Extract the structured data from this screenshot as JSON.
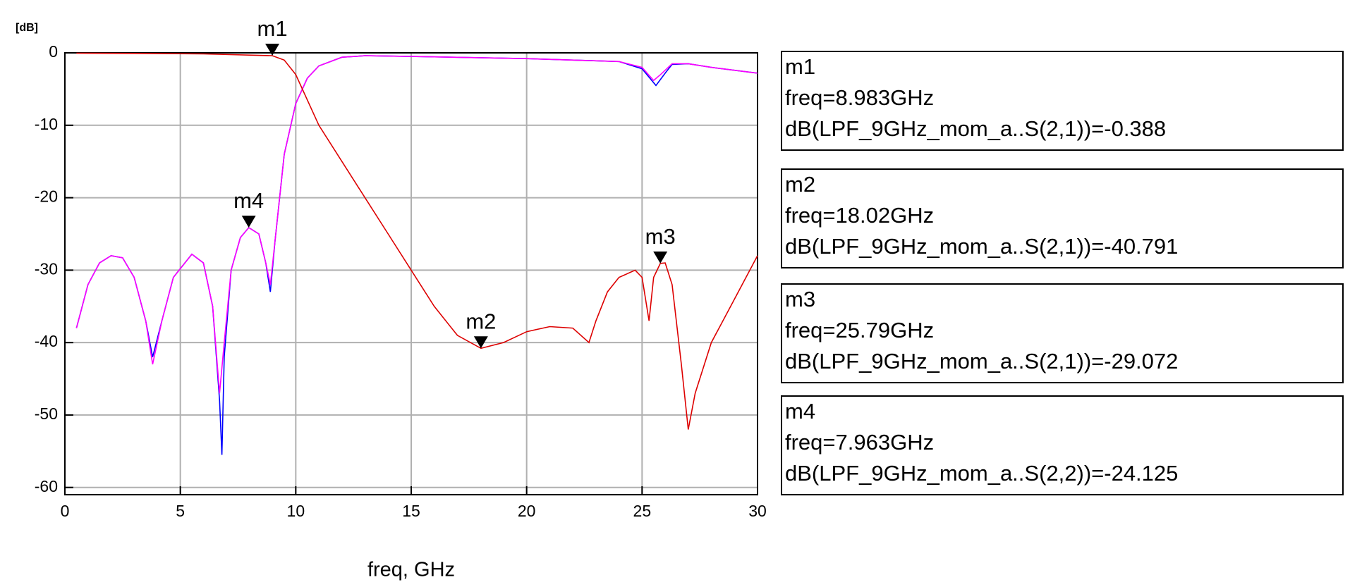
{
  "chart_data": {
    "type": "line",
    "ylabel": "[dB]",
    "xlabel": "freq, GHz",
    "xlim": [
      0,
      30
    ],
    "ylim": [
      -61,
      0
    ],
    "xticks": [
      0,
      5,
      10,
      15,
      20,
      25,
      30
    ],
    "yticks": [
      0,
      -10,
      -20,
      -30,
      -40,
      -50,
      -60
    ],
    "grid": true,
    "series": [
      {
        "color": "#0000ff",
        "x": [
          0.5,
          1,
          1.5,
          2,
          2.5,
          3,
          3.5,
          3.8,
          4.2,
          4.7,
          5.5,
          6,
          6.4,
          6.7,
          6.8,
          6.9,
          7.2,
          7.6,
          7.963,
          8.4,
          8.7,
          8.9,
          9.1,
          9.5,
          10,
          10.5,
          11,
          12,
          13,
          15,
          20,
          24,
          25,
          25.6,
          26,
          26.3,
          27,
          28,
          30
        ],
        "values": [
          -38,
          -32,
          -29,
          -28,
          -28.3,
          -31,
          -37,
          -42,
          -37,
          -31,
          -27.8,
          -29,
          -35,
          -48,
          -55.5,
          -42,
          -30,
          -25.5,
          -24.125,
          -25,
          -29,
          -33,
          -26,
          -14,
          -7,
          -3.5,
          -1.8,
          -0.6,
          -0.4,
          -0.5,
          -0.8,
          -1.2,
          -2.2,
          -4.5,
          -2.8,
          -1.6,
          -1.5,
          -2,
          -2.8
        ]
      },
      {
        "color": "#ff00ff",
        "x": [
          0.5,
          1,
          1.5,
          2,
          2.5,
          3,
          3.5,
          3.8,
          4.2,
          4.7,
          5.5,
          6,
          6.4,
          6.7,
          6.9,
          7.2,
          7.6,
          7.963,
          8.4,
          8.7,
          8.9,
          9.1,
          9.5,
          10,
          10.5,
          11,
          12,
          13,
          15,
          20,
          24,
          25,
          25.5,
          25.8,
          26.3,
          27,
          28,
          30
        ],
        "values": [
          -38,
          -32,
          -29,
          -28,
          -28.3,
          -31,
          -37,
          -43,
          -37,
          -31,
          -27.8,
          -29,
          -35,
          -47,
          -40,
          -30,
          -25.5,
          -24.125,
          -25,
          -29,
          -32,
          -26,
          -14,
          -7,
          -3.5,
          -1.8,
          -0.6,
          -0.4,
          -0.5,
          -0.8,
          -1.2,
          -2,
          -3.8,
          -3,
          -1.5,
          -1.5,
          -2,
          -2.8
        ]
      },
      {
        "color": "#dd0000",
        "x": [
          0.5,
          3,
          6,
          8.983,
          9.5,
          10,
          10.5,
          11,
          12,
          13,
          14,
          15,
          16,
          17,
          18.02,
          19,
          20,
          21,
          22,
          22.7,
          23,
          23.5,
          24,
          24.7,
          25,
          25.3,
          25.5,
          25.79,
          26,
          26.3,
          26.7,
          27,
          27.3,
          28,
          29,
          30
        ],
        "values": [
          -0.05,
          -0.08,
          -0.15,
          -0.388,
          -1,
          -3,
          -6.5,
          -10,
          -15,
          -20,
          -25,
          -30,
          -35,
          -39,
          -40.791,
          -40,
          -38.5,
          -37.8,
          -38,
          -40,
          -37,
          -33,
          -31,
          -30,
          -31,
          -37,
          -31,
          -29.072,
          -29,
          -32,
          -43,
          -52,
          -47,
          -40,
          -34,
          -28
        ]
      }
    ],
    "markers": [
      {
        "x": 8.983,
        "y": -0.388,
        "lines": [
          "m1",
          "freq=8.983GHz",
          "dB(LPF_9GHz_mom_a..S(2,1))=-0.388"
        ]
      },
      {
        "x": 18.02,
        "y": -40.791,
        "lines": [
          "m2",
          "freq=18.02GHz",
          "dB(LPF_9GHz_mom_a..S(2,1))=-40.791"
        ]
      },
      {
        "x": 25.79,
        "y": -29.072,
        "lines": [
          "m3",
          "freq=25.79GHz",
          "dB(LPF_9GHz_mom_a..S(2,1))=-29.072"
        ]
      },
      {
        "x": 7.963,
        "y": -24.125,
        "lines": [
          "m4",
          "freq=7.963GHz",
          "dB(LPF_9GHz_mom_a..S(2,2))=-24.125"
        ]
      }
    ]
  }
}
